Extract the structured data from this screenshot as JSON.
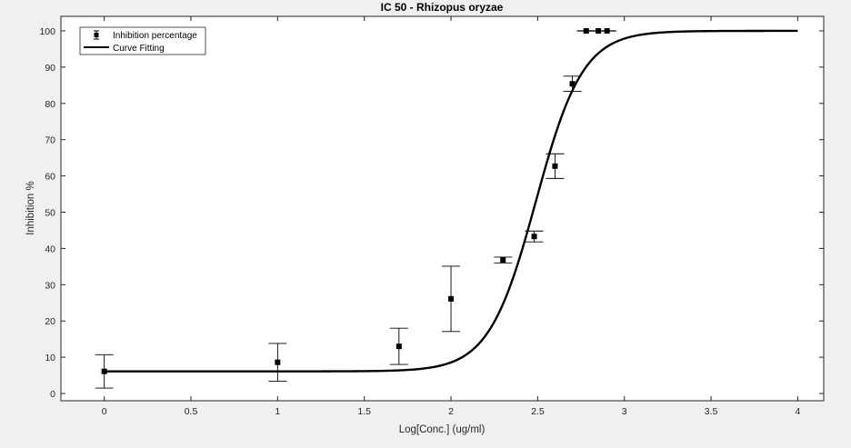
{
  "chart_data": {
    "type": "scatter",
    "title": "IC 50 - Rhizopus oryzae",
    "xlabel": "Log[Conc.] (ug/ml)",
    "ylabel": "Inhibition %",
    "xlim": [
      -0.25,
      4.15
    ],
    "ylim": [
      -2,
      104
    ],
    "xticks": [
      0,
      0.5,
      1,
      1.5,
      2,
      2.5,
      3,
      3.5,
      4
    ],
    "xtick_labels": [
      "0",
      "0.5",
      "1",
      "1.5",
      "2",
      "2.5",
      "3",
      "3.5",
      "4"
    ],
    "yticks": [
      0,
      10,
      20,
      30,
      40,
      50,
      60,
      70,
      80,
      90,
      100
    ],
    "ytick_labels": [
      "0",
      "10",
      "20",
      "30",
      "40",
      "50",
      "60",
      "70",
      "80",
      "90",
      "100"
    ],
    "grid": false,
    "legend_position": "top-left",
    "series": [
      {
        "name": "Inhibition percentage",
        "kind": "errorbar-markers",
        "marker": "square",
        "color": "#000000",
        "points": [
          {
            "x": 0,
            "y": 6.1,
            "err": 4.6
          },
          {
            "x": 1,
            "y": 8.6,
            "err": 5.2
          },
          {
            "x": 1.7,
            "y": 13.0,
            "err": 5.0
          },
          {
            "x": 2.0,
            "y": 26.1,
            "err": 9.0
          },
          {
            "x": 2.3,
            "y": 36.8,
            "err": 0.8
          },
          {
            "x": 2.48,
            "y": 43.3,
            "err": 1.5
          },
          {
            "x": 2.6,
            "y": 62.7,
            "err": 3.4
          },
          {
            "x": 2.7,
            "y": 85.4,
            "err": 2.1
          },
          {
            "x": 2.78,
            "y": 100,
            "err": 0.05
          },
          {
            "x": 2.85,
            "y": 100,
            "err": 0.05
          },
          {
            "x": 2.9,
            "y": 100,
            "err": 0.05
          }
        ]
      },
      {
        "name": "Curve Fitting",
        "kind": "line",
        "color": "#000000",
        "x_range": [
          0,
          4
        ],
        "bottom": 6.1,
        "top": 100,
        "log_ic50": 2.49,
        "hill_slope": 3.2
      }
    ]
  }
}
